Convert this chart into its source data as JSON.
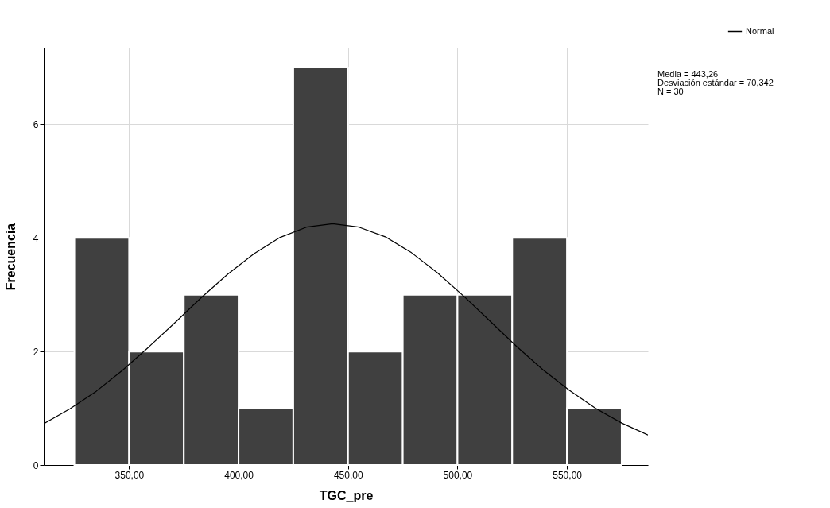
{
  "chart_data": {
    "type": "histogram",
    "xlabel": "TGC_pre",
    "ylabel": "Frecuencia",
    "bins": [
      325,
      350,
      375,
      400,
      425,
      450,
      475,
      500,
      525,
      550,
      575
    ],
    "values": [
      4,
      2,
      3,
      1,
      7,
      2,
      3,
      3,
      4,
      1
    ],
    "color": "#404040",
    "series": [
      {
        "name": "Normal",
        "type": "line",
        "color": "#000000",
        "x": [
          311,
          323,
          335,
          347,
          359,
          371,
          383,
          395,
          407,
          419,
          431,
          443,
          455,
          467,
          479,
          491,
          503,
          515,
          527,
          539,
          551,
          563,
          575,
          587
        ],
        "values": [
          0.73,
          0.99,
          1.3,
          1.67,
          2.08,
          2.51,
          2.95,
          3.36,
          3.72,
          4.01,
          4.19,
          4.25,
          4.19,
          4.02,
          3.74,
          3.38,
          2.97,
          2.53,
          2.09,
          1.68,
          1.32,
          1.0,
          0.74,
          0.53
        ]
      }
    ],
    "xlim": [
      311,
      587
    ],
    "xticks": [
      {
        "value": 350,
        "label": "350,00"
      },
      {
        "value": 400,
        "label": "400,00"
      },
      {
        "value": 450,
        "label": "450,00"
      },
      {
        "value": 500,
        "label": "500,00"
      },
      {
        "value": 550,
        "label": "550,00"
      }
    ],
    "ylim": [
      0,
      7.35
    ],
    "yticks": [
      0,
      2,
      4,
      6
    ],
    "grid": true,
    "legend": "top right",
    "annotations": [
      "Media = 443,26",
      "Desviación estándar = 70,342",
      "N = 30"
    ]
  }
}
